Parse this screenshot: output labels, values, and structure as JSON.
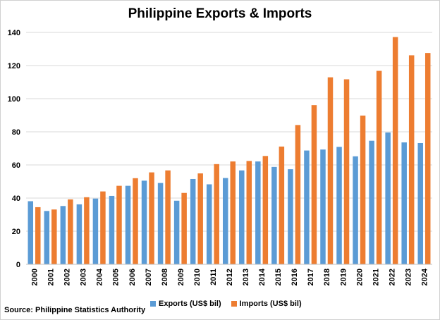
{
  "chart_data": {
    "type": "bar",
    "title": "Philippine Exports & Imports",
    "source": "Source: Philippine Statistics Authority",
    "categories": [
      "2000",
      "2001",
      "2002",
      "2003",
      "2004",
      "2005",
      "2006",
      "2007",
      "2008",
      "2009",
      "2010",
      "2011",
      "2012",
      "2013",
      "2014",
      "2015",
      "2016",
      "2017",
      "2018",
      "2019",
      "2020",
      "2021",
      "2022",
      "2023",
      "2024"
    ],
    "series": [
      {
        "name": "Exports (US$ bil)",
        "color": "#5B9BD5",
        "values": [
          38.1,
          32.2,
          35.2,
          36.2,
          39.7,
          41.3,
          47.4,
          50.5,
          49.1,
          38.4,
          51.5,
          48.3,
          52.1,
          56.7,
          62.1,
          58.8,
          57.4,
          68.7,
          69.3,
          70.9,
          65.2,
          74.6,
          79.6,
          73.6,
          73.2
        ]
      },
      {
        "name": "Imports (US$ bil)",
        "color": "#ED7D31",
        "values": [
          34.5,
          33.1,
          39.2,
          40.5,
          44.0,
          47.4,
          52.0,
          55.5,
          56.7,
          43.1,
          54.9,
          60.5,
          62.1,
          62.4,
          65.4,
          71.1,
          84.1,
          96.1,
          112.9,
          111.7,
          89.8,
          116.8,
          137.2,
          126.2,
          127.6
        ]
      }
    ],
    "ylim": [
      0,
      140
    ],
    "yticks": [
      0,
      20,
      40,
      60,
      80,
      100,
      120,
      140
    ],
    "grid": true,
    "legend": "bottom"
  }
}
